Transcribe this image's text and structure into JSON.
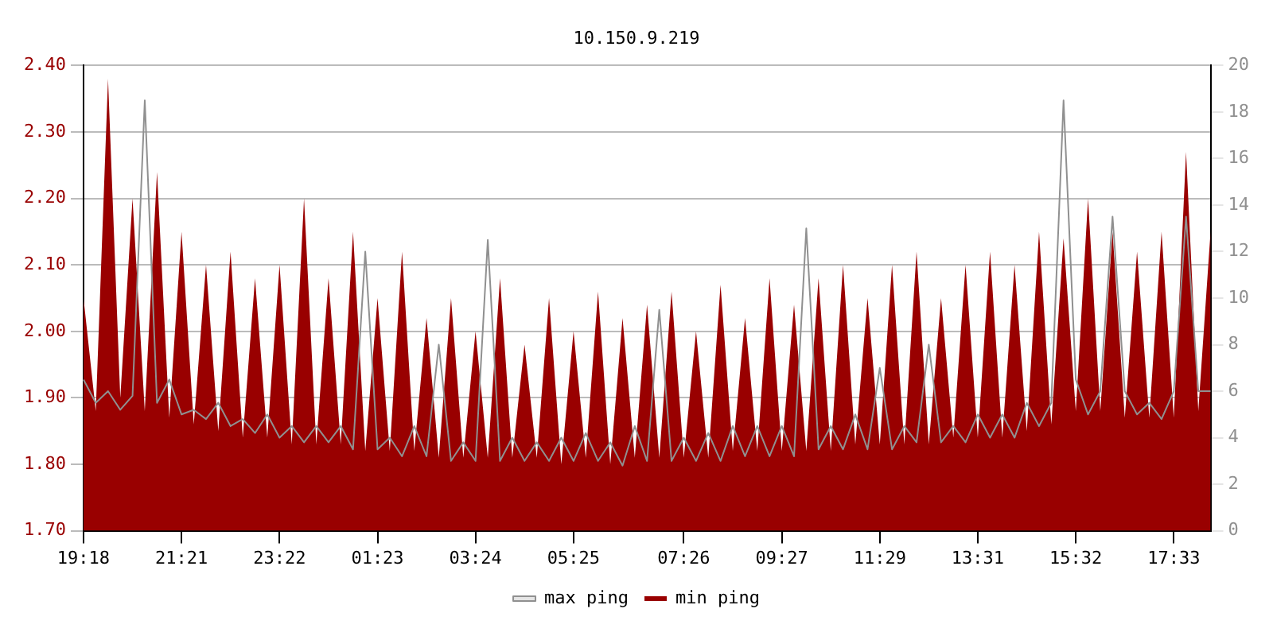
{
  "chart_data": {
    "type": "area",
    "title": "10.150.9.219",
    "categories": [
      "19:18",
      null,
      null,
      null,
      null,
      null,
      null,
      null,
      "21:21",
      null,
      null,
      null,
      null,
      null,
      null,
      null,
      "23:22",
      null,
      null,
      null,
      null,
      null,
      null,
      null,
      "01:23",
      null,
      null,
      null,
      null,
      null,
      null,
      null,
      "03:24",
      null,
      null,
      null,
      null,
      null,
      null,
      null,
      "05:25",
      null,
      null,
      null,
      null,
      null,
      null,
      null,
      null,
      "07:26",
      null,
      null,
      null,
      null,
      null,
      null,
      null,
      "09:27",
      null,
      null,
      null,
      null,
      null,
      null,
      null,
      "11:29",
      null,
      null,
      null,
      null,
      null,
      null,
      null,
      "13:31",
      null,
      null,
      null,
      null,
      null,
      null,
      null,
      "15:32",
      null,
      null,
      null,
      null,
      null,
      null,
      null,
      "17:33",
      null,
      null,
      null
    ],
    "series": [
      {
        "name": "min ping",
        "color": "#990000",
        "values": [
          2.05,
          1.88,
          2.38,
          1.9,
          2.2,
          1.88,
          2.24,
          1.87,
          2.15,
          1.86,
          2.1,
          1.85,
          2.12,
          1.84,
          2.08,
          1.84,
          2.1,
          1.83,
          2.2,
          1.83,
          2.08,
          1.83,
          2.15,
          1.82,
          2.05,
          1.82,
          2.12,
          1.82,
          2.02,
          1.81,
          2.05,
          1.81,
          2.0,
          1.81,
          2.08,
          1.81,
          1.98,
          1.81,
          2.05,
          1.8,
          2.0,
          1.81,
          2.06,
          1.8,
          2.02,
          1.81,
          2.04,
          1.81,
          2.06,
          1.81,
          2.0,
          1.81,
          2.07,
          1.82,
          2.02,
          1.82,
          2.08,
          1.82,
          2.04,
          1.82,
          2.08,
          1.82,
          2.1,
          1.83,
          2.05,
          1.83,
          2.1,
          1.83,
          2.12,
          1.83,
          2.05,
          1.84,
          2.1,
          1.84,
          2.12,
          1.84,
          2.1,
          1.85,
          2.15,
          1.86,
          2.14,
          1.88,
          2.2,
          1.88,
          2.15,
          1.87,
          2.12,
          1.87,
          2.15,
          1.87,
          2.27,
          1.88,
          2.15
        ]
      },
      {
        "name": "max ping",
        "type": "line",
        "axis": "y2",
        "color": "#909090",
        "values": [
          6.5,
          5.5,
          6,
          5.2,
          5.8,
          18.5,
          5.5,
          6.5,
          5,
          5.2,
          4.8,
          5.5,
          4.5,
          4.8,
          4.2,
          5,
          4,
          4.5,
          3.8,
          4.5,
          3.8,
          4.5,
          3.5,
          12,
          3.5,
          4,
          3.2,
          4.5,
          3.2,
          8,
          3,
          3.8,
          3,
          12.5,
          3,
          4,
          3,
          3.8,
          3,
          4,
          3,
          4.2,
          3,
          3.8,
          2.8,
          4.5,
          3,
          9.5,
          3,
          4,
          3,
          4.2,
          3,
          4.5,
          3.2,
          4.5,
          3.2,
          4.5,
          3.2,
          13,
          3.5,
          4.5,
          3.5,
          5,
          3.5,
          7,
          3.5,
          4.5,
          3.8,
          8,
          3.8,
          4.5,
          3.8,
          5,
          4,
          5,
          4,
          5.5,
          4.5,
          5.5,
          18.5,
          6.5,
          5,
          6,
          13.5,
          6,
          5,
          5.5,
          4.8,
          6,
          13.5,
          6,
          6
        ]
      }
    ],
    "ylim": [
      1.7,
      2.4
    ],
    "yticks": [
      {
        "value": 1.7,
        "label": "1.70"
      },
      {
        "value": 1.8,
        "label": "1.80"
      },
      {
        "value": 1.9,
        "label": "1.90"
      },
      {
        "value": 2.0,
        "label": "2.00"
      },
      {
        "value": 2.1,
        "label": "2.10"
      },
      {
        "value": 2.2,
        "label": "2.20"
      },
      {
        "value": 2.3,
        "label": "2.30"
      },
      {
        "value": 2.4,
        "label": "2.40"
      }
    ],
    "y2lim": [
      0,
      20
    ],
    "y2ticks": [
      0,
      2,
      4,
      6,
      8,
      10,
      12,
      14,
      16,
      18,
      20
    ],
    "grid": "y",
    "legend": "bottom"
  }
}
